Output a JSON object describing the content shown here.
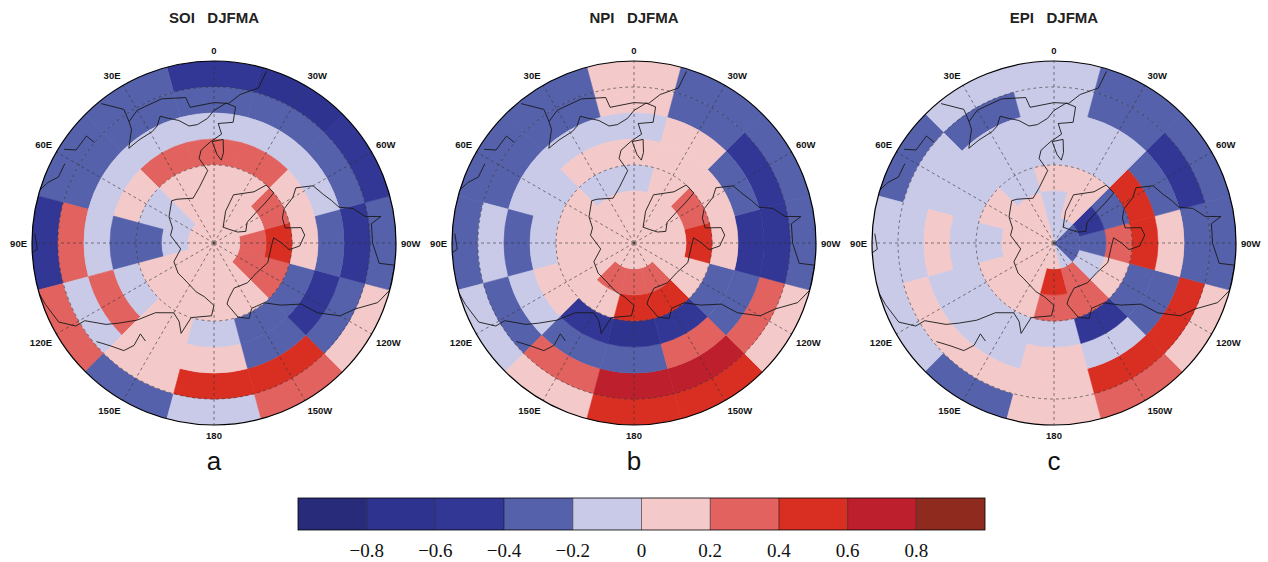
{
  "chart_data": [
    {
      "type": "heatmap",
      "title": "SOI   DJFMA",
      "panel": "a",
      "x": [
        0,
        30,
        60,
        90,
        120,
        150,
        180,
        210,
        240,
        270,
        300,
        330
      ],
      "y": [
        25,
        35,
        45,
        55,
        65,
        75,
        85
      ],
      "values": [
        [
          -0.5,
          -0.3,
          -0.3,
          -0.5,
          0.3,
          -0.3,
          -0.1,
          0.3,
          0.1,
          -0.3,
          -0.5,
          -0.7
        ],
        [
          -0.3,
          -0.3,
          -0.4,
          0.3,
          -0.1,
          0.1,
          0.5,
          0.5,
          -0.3,
          -0.5,
          -0.3,
          -0.3
        ],
        [
          -0.1,
          -0.1,
          -0.1,
          -0.1,
          0.2,
          0.1,
          0.1,
          -0.3,
          -0.5,
          -0.3,
          -0.1,
          -0.1
        ],
        [
          0.3,
          0.3,
          0.1,
          -0.3,
          -0.1,
          0.1,
          -0.1,
          -0.3,
          -0.3,
          0.1,
          0.1,
          0.3
        ],
        [
          0.1,
          0.1,
          -0.1,
          -0.3,
          0.1,
          0.1,
          0.1,
          0.1,
          0.3,
          0.4,
          0.2,
          0.1
        ],
        [
          0.0,
          0.0,
          -0.1,
          -0.1,
          0.1,
          0.0,
          0.1,
          0.1,
          0.3,
          0.3,
          0.1,
          0.0
        ],
        [
          0.0,
          0.0,
          0.0,
          0.1,
          0.1,
          0.1,
          0.1,
          0.0,
          0.0,
          0.1,
          0.0,
          0.0
        ]
      ],
      "xlim": [
        -15,
        345
      ],
      "ylim": [
        20,
        90
      ],
      "xticks": [
        0,
        {
          "value": 30,
          "label": "30E"
        },
        {
          "value": 60,
          "label": "60E"
        },
        {
          "value": 90,
          "label": "90E"
        },
        {
          "value": 120,
          "label": "120E"
        },
        {
          "value": 150,
          "label": "150E"
        },
        180,
        {
          "value": 210,
          "label": "150W"
        },
        {
          "value": 240,
          "label": "120W"
        },
        {
          "value": 270,
          "label": "90W"
        },
        {
          "value": 300,
          "label": "60W"
        },
        {
          "value": 330,
          "label": "30W"
        }
      ],
      "yticks": [
        30,
        60
      ],
      "grid": true,
      "tick_labels": "x"
    },
    {
      "type": "heatmap",
      "title": "NPI   DJFMA",
      "panel": "b",
      "x": [
        0,
        30,
        60,
        90,
        120,
        150,
        180,
        210,
        240,
        270,
        300,
        330
      ],
      "y": [
        25,
        35,
        45,
        55,
        65,
        75,
        85
      ],
      "values": [
        [
          0.1,
          -0.4,
          -0.4,
          -0.4,
          -0.1,
          0.1,
          0.5,
          0.5,
          0.1,
          -0.3,
          -0.3,
          -0.4
        ],
        [
          0.1,
          -0.3,
          -0.3,
          -0.1,
          -0.3,
          0.3,
          0.7,
          0.6,
          0.3,
          -0.6,
          -0.6,
          -0.3
        ],
        [
          -0.1,
          -0.1,
          -0.1,
          -0.3,
          -0.1,
          -0.3,
          -0.3,
          0.3,
          -0.3,
          -0.5,
          -0.3,
          0.1
        ],
        [
          0.1,
          0.1,
          -0.1,
          -0.1,
          0.1,
          -0.5,
          -0.7,
          -0.5,
          -0.3,
          0.1,
          0.1,
          0.1
        ],
        [
          -0.1,
          -0.1,
          0.1,
          0.1,
          0.1,
          0.1,
          0.4,
          0.5,
          0.1,
          0.4,
          0.2,
          0.1
        ],
        [
          0.1,
          0.0,
          0.1,
          0.1,
          0.1,
          0.3,
          0.3,
          0.3,
          0.1,
          0.1,
          0.1,
          0.0
        ],
        [
          0.0,
          0.0,
          0.0,
          0.0,
          0.0,
          0.1,
          0.1,
          0.1,
          0.0,
          0.0,
          0.0,
          0.0
        ]
      ],
      "xlim": [
        -15,
        345
      ],
      "ylim": [
        20,
        90
      ],
      "xticks": [
        0,
        {
          "value": 30,
          "label": "30E"
        },
        {
          "value": 60,
          "label": "60E"
        },
        {
          "value": 90,
          "label": "90E"
        },
        {
          "value": 120,
          "label": "120E"
        },
        {
          "value": 150,
          "label": "150E"
        },
        180,
        {
          "value": 210,
          "label": "150W"
        },
        {
          "value": 240,
          "label": "120W"
        },
        {
          "value": 270,
          "label": "90W"
        },
        {
          "value": 300,
          "label": "60W"
        },
        {
          "value": 330,
          "label": "30W"
        }
      ],
      "yticks": [
        30,
        60
      ],
      "grid": true,
      "tick_labels": "x"
    },
    {
      "type": "heatmap",
      "title": "EPI   DJFMA",
      "panel": "c",
      "x": [
        0,
        30,
        60,
        90,
        120,
        150,
        180,
        210,
        240,
        270,
        300,
        330
      ],
      "y": [
        25,
        35,
        45,
        55,
        65,
        75,
        85
      ],
      "values": [
        [
          -0.1,
          -0.1,
          -0.3,
          -0.1,
          -0.1,
          -0.3,
          0.1,
          0.3,
          0.1,
          -0.4,
          -0.3,
          -0.4
        ],
        [
          -0.1,
          -0.3,
          -0.1,
          -0.1,
          0.1,
          0.1,
          0.1,
          0.5,
          0.5,
          -0.3,
          -0.6,
          -0.3
        ],
        [
          -0.1,
          -0.1,
          -0.1,
          0.1,
          -0.1,
          -0.1,
          0.1,
          -0.1,
          -0.3,
          0.1,
          -0.3,
          -0.1
        ],
        [
          -0.1,
          -0.1,
          -0.1,
          -0.1,
          -0.1,
          -0.1,
          -0.1,
          -0.6,
          -0.3,
          0.4,
          0.4,
          -0.1
        ],
        [
          0.1,
          -0.1,
          0.1,
          -0.1,
          0.1,
          0.1,
          0.3,
          0.3,
          0.1,
          0.3,
          -0.3,
          0.1
        ],
        [
          -0.1,
          0.1,
          0.1,
          0.1,
          0.1,
          0.1,
          0.5,
          0.3,
          -0.1,
          -0.3,
          -0.5,
          0.1
        ],
        [
          -0.1,
          0.0,
          0.0,
          0.0,
          0.0,
          0.0,
          0.0,
          -0.1,
          -0.3,
          -0.3,
          -0.3,
          -0.1
        ]
      ],
      "xlim": [
        -15,
        345
      ],
      "ylim": [
        20,
        90
      ],
      "xticks": [
        0,
        {
          "value": 30,
          "label": "30E"
        },
        {
          "value": 60,
          "label": "60E"
        },
        {
          "value": 90,
          "label": "90E"
        },
        {
          "value": 120,
          "label": "120E"
        },
        {
          "value": 150,
          "label": "150E"
        },
        180,
        {
          "value": 210,
          "label": "150W"
        },
        {
          "value": 240,
          "label": "120W"
        },
        {
          "value": 270,
          "label": "90W"
        },
        {
          "value": 300,
          "label": "60W"
        },
        {
          "value": 330,
          "label": "30W"
        }
      ],
      "yticks": [
        30,
        60
      ],
      "grid": true,
      "tick_labels": "x"
    }
  ],
  "color_bar": {
    "range": [
      -1,
      1
    ],
    "colors": [
      "#272b7a",
      "#2f3390",
      "#323694",
      "#5561ab",
      "#c9c9e8",
      "#f4c9c9",
      "#e1625e",
      "#d92f23",
      "#be1f2c",
      "#8e2a1e"
    ],
    "ticks": [
      {
        "value": -0.8,
        "label": "−0.8"
      },
      {
        "value": -0.6,
        "label": "−0.6"
      },
      {
        "value": -0.4,
        "label": "−0.4"
      },
      {
        "value": -0.2,
        "label": "−0.2"
      },
      0,
      0.2,
      0.4,
      0.6,
      0.8
    ]
  }
}
